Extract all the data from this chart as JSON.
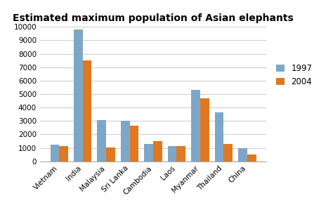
{
  "title": "Estimated maximum population of Asian elephants",
  "categories": [
    "Vietnam",
    "India",
    "Malaysia",
    "Sri Lanka",
    "Cambodia",
    "Laos",
    "Myanmar",
    "Thailand",
    "China"
  ],
  "values_1997": [
    1250,
    9800,
    3050,
    3000,
    1300,
    1150,
    5300,
    3650,
    1000
  ],
  "values_2004": [
    1150,
    7500,
    1050,
    2650,
    1500,
    1150,
    4700,
    1300,
    500
  ],
  "color_1997": "#7ea6c8",
  "color_2004": "#e07820",
  "legend_labels": [
    "1997",
    "2004"
  ],
  "ylim": [
    0,
    10000
  ],
  "yticks": [
    0,
    1000,
    2000,
    3000,
    4000,
    5000,
    6000,
    7000,
    8000,
    9000,
    10000
  ],
  "bar_width": 0.38,
  "title_fontsize": 10,
  "tick_fontsize": 7.5,
  "legend_fontsize": 8.5,
  "background_color": "#ffffff",
  "grid_color": "#d0d0d0"
}
